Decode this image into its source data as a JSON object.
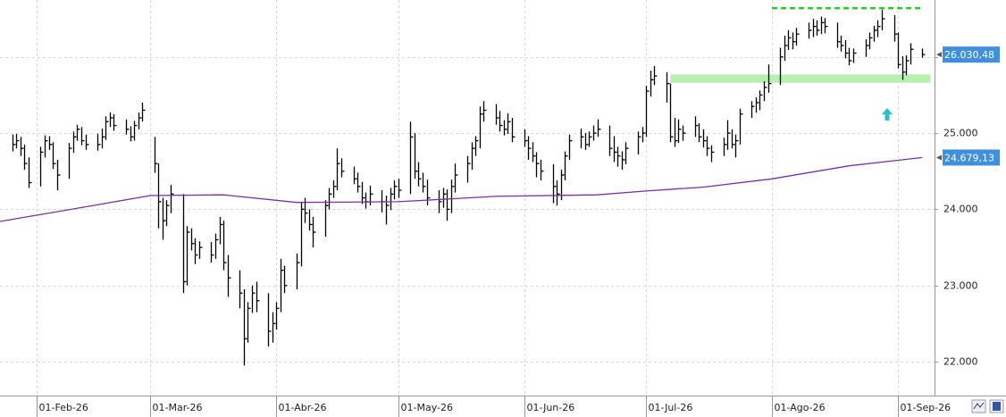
{
  "chart_data": {
    "type": "hlc",
    "xlim": [
      "2026-01-23",
      "2026-09-10"
    ],
    "ylim": [
      21555,
      26747
    ],
    "yticks": [
      {
        "value": 22000,
        "label": "22.000"
      },
      {
        "value": 23000,
        "label": "23.000"
      },
      {
        "value": 24000,
        "label": "24.000"
      },
      {
        "value": 25000,
        "label": "25.000"
      },
      {
        "value": 26000,
        "label": "26.000"
      }
    ],
    "xticks": [
      {
        "value": "2026-02-01",
        "label": "01-Feb-26"
      },
      {
        "value": "2026-03-01",
        "label": "01-Mar-26"
      },
      {
        "value": "2026-04-01",
        "label": "01-Abr-26"
      },
      {
        "value": "2026-05-01",
        "label": "01-May-26"
      },
      {
        "value": "2026-06-01",
        "label": "01-Jun-26"
      },
      {
        "value": "2026-07-01",
        "label": "01-Jul-26"
      },
      {
        "value": "2026-08-01",
        "label": "01-Ago-26"
      },
      {
        "value": "2026-09-01",
        "label": "01-Sep-26"
      }
    ],
    "grid": true,
    "color": "#000000",
    "x": [
      "2026-01-26",
      "2026-01-27",
      "2026-01-28",
      "2026-01-29",
      "2026-01-30",
      "2026-02-02",
      "2026-02-03",
      "2026-02-04",
      "2026-02-05",
      "2026-02-06",
      "2026-02-09",
      "2026-02-10",
      "2026-02-11",
      "2026-02-12",
      "2026-02-13",
      "2026-02-16",
      "2026-02-17",
      "2026-02-18",
      "2026-02-19",
      "2026-02-20",
      "2026-02-23",
      "2026-02-24",
      "2026-02-25",
      "2026-02-26",
      "2026-02-27",
      "2026-03-02",
      "2026-03-03",
      "2026-03-04",
      "2026-03-05",
      "2026-03-06",
      "2026-03-09",
      "2026-03-10",
      "2026-03-11",
      "2026-03-12",
      "2026-03-13",
      "2026-03-16",
      "2026-03-17",
      "2026-03-18",
      "2026-03-19",
      "2026-03-20",
      "2026-03-23",
      "2026-03-24",
      "2026-03-25",
      "2026-03-26",
      "2026-03-27",
      "2026-03-30",
      "2026-03-31",
      "2026-04-01",
      "2026-04-02",
      "2026-04-03",
      "2026-04-06",
      "2026-04-07",
      "2026-04-08",
      "2026-04-09",
      "2026-04-10",
      "2026-04-13",
      "2026-04-14",
      "2026-04-15",
      "2026-04-16",
      "2026-04-17",
      "2026-04-20",
      "2026-04-21",
      "2026-04-22",
      "2026-04-23",
      "2026-04-24",
      "2026-04-27",
      "2026-04-28",
      "2026-04-29",
      "2026-04-30",
      "2026-05-01",
      "2026-05-04",
      "2026-05-05",
      "2026-05-06",
      "2026-05-07",
      "2026-05-08",
      "2026-05-11",
      "2026-05-12",
      "2026-05-13",
      "2026-05-14",
      "2026-05-15",
      "2026-05-18",
      "2026-05-19",
      "2026-05-20",
      "2026-05-21",
      "2026-05-22",
      "2026-05-25",
      "2026-05-26",
      "2026-05-27",
      "2026-05-28",
      "2026-05-29",
      "2026-06-01",
      "2026-06-02",
      "2026-06-03",
      "2026-06-04",
      "2026-06-05",
      "2026-06-08",
      "2026-06-09",
      "2026-06-10",
      "2026-06-11",
      "2026-06-12",
      "2026-06-15",
      "2026-06-16",
      "2026-06-17",
      "2026-06-18",
      "2026-06-19",
      "2026-06-22",
      "2026-06-23",
      "2026-06-24",
      "2026-06-25",
      "2026-06-26",
      "2026-06-29",
      "2026-06-30",
      "2026-07-01",
      "2026-07-02",
      "2026-07-03",
      "2026-07-06",
      "2026-07-07",
      "2026-07-08",
      "2026-07-09",
      "2026-07-10",
      "2026-07-13",
      "2026-07-14",
      "2026-07-15",
      "2026-07-16",
      "2026-07-17",
      "2026-07-20",
      "2026-07-21",
      "2026-07-22",
      "2026-07-23",
      "2026-07-24",
      "2026-07-27",
      "2026-07-28",
      "2026-07-29",
      "2026-07-30",
      "2026-07-31",
      "2026-08-03",
      "2026-08-04",
      "2026-08-05",
      "2026-08-06",
      "2026-08-07",
      "2026-08-10",
      "2026-08-11",
      "2026-08-12",
      "2026-08-13",
      "2026-08-14",
      "2026-08-17",
      "2026-08-18",
      "2026-08-19",
      "2026-08-20",
      "2026-08-21",
      "2026-08-24",
      "2026-08-25",
      "2026-08-26",
      "2026-08-27",
      "2026-08-28",
      "2026-08-31",
      "2026-09-01",
      "2026-09-02",
      "2026-09-03",
      "2026-09-04",
      "2026-09-07"
    ],
    "high": [
      24980,
      24990,
      24950,
      24850,
      24680,
      24820,
      24970,
      24960,
      24880,
      24650,
      24870,
      25020,
      25110,
      25080,
      24980,
      24990,
      25060,
      25220,
      25270,
      25250,
      25180,
      25090,
      25160,
      25270,
      25400,
      24950,
      24600,
      24150,
      24120,
      24320,
      24200,
      23780,
      23750,
      23620,
      23580,
      23570,
      23680,
      23900,
      23850,
      23400,
      23200,
      22950,
      22780,
      23000,
      23050,
      22900,
      22650,
      22780,
      23350,
      23260,
      23420,
      24100,
      24150,
      24000,
      23900,
      24120,
      24280,
      24380,
      24800,
      24670,
      24560,
      24480,
      24360,
      24220,
      24310,
      24250,
      24180,
      24280,
      24380,
      24400,
      25150,
      25000,
      24620,
      24480,
      24390,
      24250,
      24280,
      24260,
      24390,
      24600,
      24700,
      24880,
      24960,
      25350,
      25420,
      25380,
      25290,
      25170,
      25260,
      25200,
      25050,
      24960,
      24880,
      24750,
      24650,
      24590,
      24380,
      24520,
      24760,
      24980,
      25060,
      25000,
      25020,
      25100,
      25180,
      25100,
      24960,
      24820,
      24760,
      24880,
      25020,
      25080,
      25620,
      25820,
      25880,
      25800,
      25650,
      25200,
      25180,
      25100,
      25220,
      25130,
      25050,
      24960,
      24840,
      24940,
      25170,
      25050,
      24980,
      25320,
      25420,
      25470,
      25560,
      25680,
      25900,
      26120,
      26280,
      26350,
      26320,
      26380,
      26450,
      26500,
      26480,
      26530,
      26510,
      26450,
      26280,
      26220,
      26120,
      26110,
      26230,
      26320,
      26410,
      26480,
      26620,
      26550,
      26320,
      26010,
      26020,
      26180,
      26110
    ],
    "low": [
      24760,
      24800,
      24700,
      24520,
      24280,
      24300,
      24680,
      24780,
      24530,
      24250,
      24400,
      24740,
      24900,
      24840,
      24780,
      24770,
      24800,
      24910,
      25080,
      25030,
      24980,
      24890,
      24900,
      25050,
      25150,
      24480,
      23750,
      23600,
      23780,
      23950,
      22900,
      23000,
      23460,
      23280,
      23350,
      23300,
      23350,
      23540,
      23200,
      22850,
      22700,
      21950,
      22250,
      22640,
      22650,
      22200,
      22250,
      22420,
      22650,
      22900,
      22950,
      23250,
      23820,
      23720,
      23500,
      23640,
      24000,
      24150,
      24250,
      24420,
      24330,
      24220,
      24070,
      24010,
      24050,
      23960,
      23800,
      23990,
      24130,
      24150,
      24200,
      24400,
      24300,
      24220,
      24050,
      23950,
      24020,
      23850,
      23950,
      24220,
      24350,
      24520,
      24700,
      24800,
      25150,
      25110,
      25020,
      24970,
      24990,
      24880,
      24820,
      24650,
      24620,
      24420,
      24380,
      24080,
      24050,
      24120,
      24380,
      24650,
      24800,
      24780,
      24820,
      24900,
      24950,
      24700,
      24620,
      24560,
      24520,
      24590,
      24720,
      24880,
      24950,
      25480,
      25630,
      25400,
      24880,
      24820,
      24870,
      24900,
      24950,
      24880,
      24810,
      24700,
      24620,
      24700,
      24780,
      24800,
      24680,
      24850,
      25200,
      25270,
      25300,
      25420,
      25530,
      25630,
      25950,
      26090,
      26100,
      26150,
      26240,
      26260,
      26280,
      26300,
      26310,
      26120,
      26070,
      25980,
      25890,
      25920,
      26000,
      26100,
      26200,
      26260,
      26350,
      26200,
      25850,
      25700,
      25760,
      25900,
      25990
    ],
    "close": [
      24850,
      24900,
      24800,
      24600,
      24350,
      24750,
      24900,
      24850,
      24600,
      24450,
      24800,
      24950,
      25050,
      24900,
      24850,
      24850,
      24950,
      25150,
      25200,
      25100,
      25050,
      24950,
      25100,
      25200,
      25300,
      24600,
      24100,
      23850,
      24050,
      24200,
      23050,
      23700,
      23550,
      23400,
      23500,
      23400,
      23600,
      23800,
      23300,
      23100,
      22900,
      22300,
      22700,
      22900,
      22800,
      22400,
      22500,
      22700,
      23200,
      23000,
      23300,
      24000,
      23950,
      23800,
      23700,
      24050,
      24200,
      24300,
      24600,
      24500,
      24400,
      24300,
      24150,
      24100,
      24200,
      24100,
      24050,
      24200,
      24300,
      24250,
      24950,
      24500,
      24400,
      24300,
      24150,
      24100,
      24200,
      24000,
      24300,
      24450,
      24600,
      24800,
      24900,
      25250,
      25300,
      25200,
      25100,
      25050,
      25150,
      24950,
      24900,
      24800,
      24700,
      24600,
      24500,
      24300,
      24200,
      24450,
      24700,
      24900,
      24950,
      24850,
      24950,
      25000,
      25050,
      24800,
      24750,
      24700,
      24650,
      24800,
      24950,
      25000,
      25550,
      25700,
      25750,
      25650,
      24950,
      24900,
      25050,
      25000,
      25100,
      24950,
      24900,
      24800,
      24750,
      24850,
      25000,
      24850,
      24900,
      25250,
      25350,
      25400,
      25500,
      25600,
      25650,
      26000,
      26150,
      26250,
      26200,
      26300,
      26350,
      26400,
      26350,
      26450,
      26400,
      26200,
      26150,
      26050,
      25950,
      26050,
      26150,
      26250,
      26350,
      26400,
      26500,
      26300,
      25900,
      25800,
      25950,
      26100,
      26030.48
    ],
    "close_value_label": "26.030,48",
    "moving_average": {
      "color": "#7b2fa8",
      "x": [
        "2026-01-23",
        "2026-02-15",
        "2026-03-01",
        "2026-03-19",
        "2026-04-06",
        "2026-05-01",
        "2026-05-25",
        "2026-06-19",
        "2026-07-01",
        "2026-07-15",
        "2026-08-01",
        "2026-08-20",
        "2026-09-07"
      ],
      "values": [
        23840,
        24050,
        24180,
        24190,
        24090,
        24100,
        24170,
        24190,
        24240,
        24290,
        24400,
        24570,
        24679.13
      ],
      "value_label": "24.679,13"
    },
    "resistance": {
      "value": 26640,
      "x": [
        "2026-08-01",
        "2026-09-07"
      ],
      "color": "#22cc22"
    },
    "support_band": {
      "values": [
        25660,
        25770
      ],
      "x": [
        "2026-07-07",
        "2026-09-09"
      ],
      "color": "#b8f0b0"
    }
  }
}
